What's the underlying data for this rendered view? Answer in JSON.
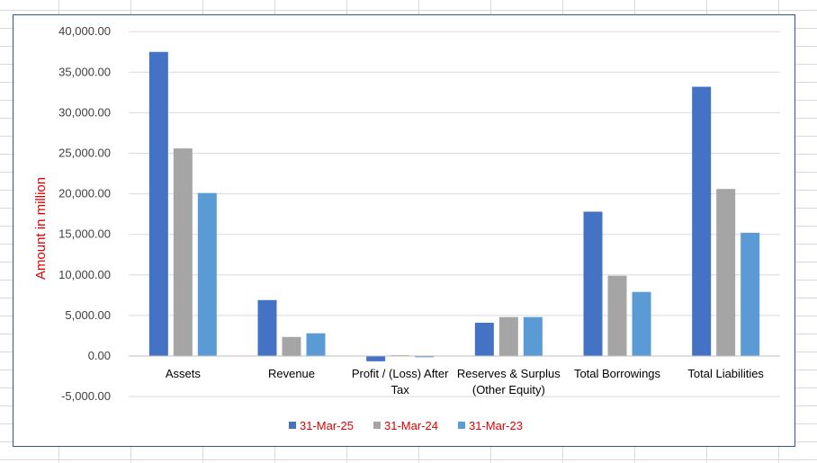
{
  "chart_data": {
    "type": "bar",
    "title": "",
    "xlabel": "",
    "ylabel": "Amount in million",
    "ylim": [
      -5000,
      40000
    ],
    "ytick_step": 5000,
    "ytick_labels": [
      "-5,000.00",
      "0.00",
      "5,000.00",
      "10,000.00",
      "15,000.00",
      "20,000.00",
      "25,000.00",
      "30,000.00",
      "35,000.00",
      "40,000.00"
    ],
    "grid": true,
    "legend_position": "bottom",
    "categories": [
      [
        "Assets"
      ],
      [
        "Revenue"
      ],
      [
        "Profit / (Loss) After",
        "Tax"
      ],
      [
        "Reserves & Surplus",
        "(Other Equity)"
      ],
      [
        "Total Borrowings"
      ],
      [
        "Total Liabilities"
      ]
    ],
    "series": [
      {
        "name": "31-Mar-25",
        "color": "#4472c4",
        "values": [
          37500,
          6900,
          -650,
          4100,
          17800,
          33200
        ]
      },
      {
        "name": "31-Mar-24",
        "color": "#a5a5a5",
        "values": [
          25600,
          2350,
          100,
          4800,
          9900,
          20600
        ]
      },
      {
        "name": "31-Mar-23",
        "color": "#5b9bd5",
        "values": [
          20100,
          2800,
          -150,
          4800,
          7900,
          15200
        ]
      }
    ]
  }
}
